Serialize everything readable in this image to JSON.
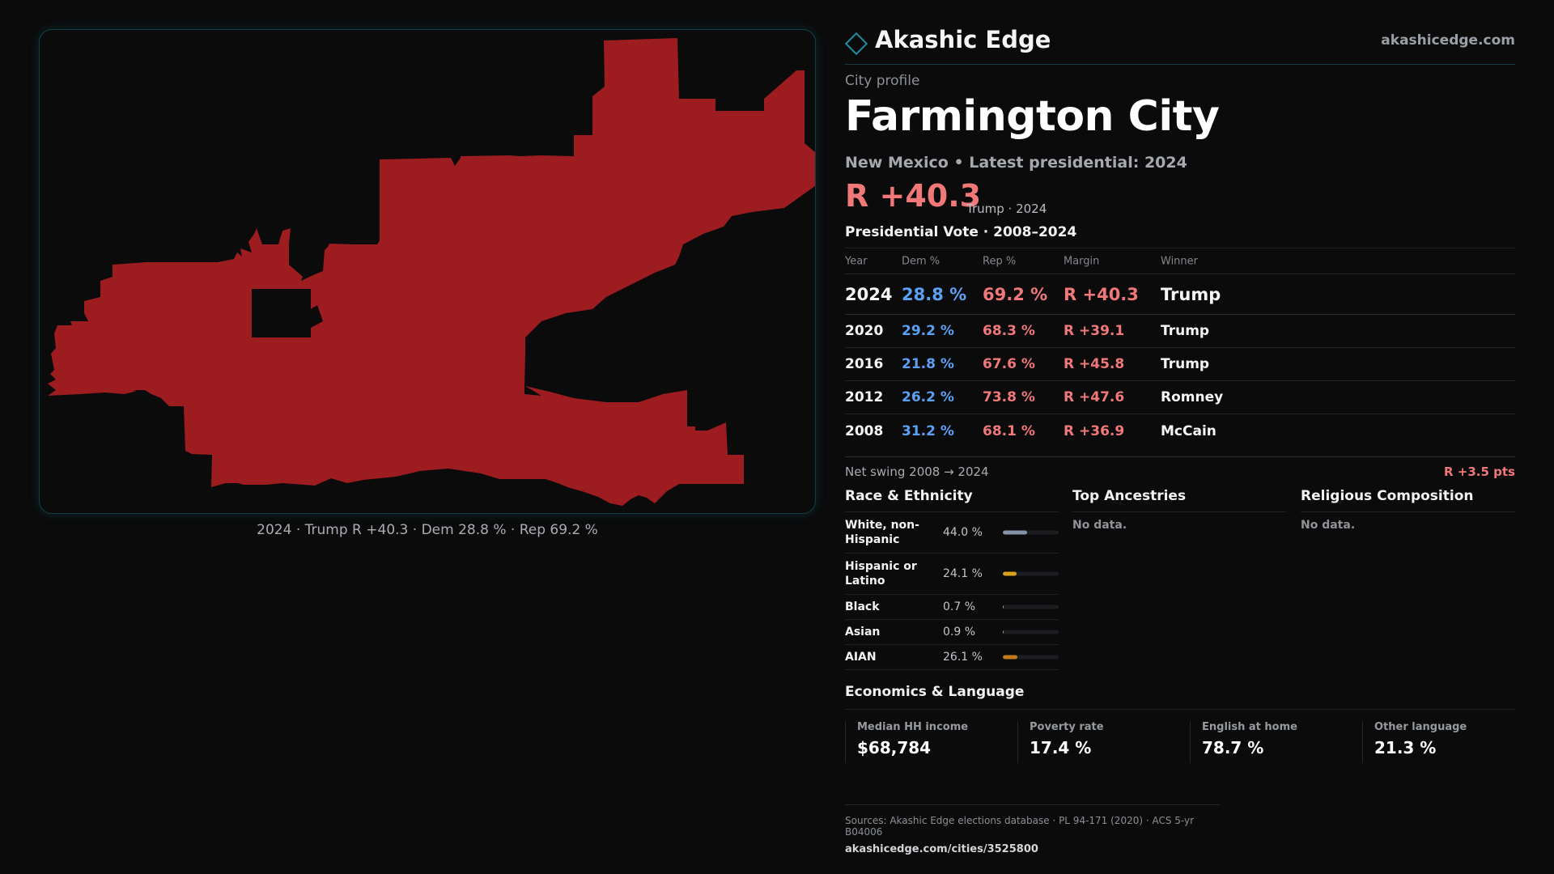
{
  "map": {
    "caption": "2024 · Trump R +40.3 · Dem 28.8 % · Rep 69.2 %",
    "fill_color": "#9c1c1f"
  },
  "brand": {
    "name": "Akashic Edge",
    "url": "akashicedge.com"
  },
  "profile": {
    "eyebrow": "City profile",
    "title": "Farmington City",
    "subtitle": "New Mexico • Latest presidential: 2024",
    "margin": "R +40.3",
    "margin_note": "Trump · 2024"
  },
  "vote": {
    "heading": "Presidential Vote · 2008–2024",
    "columns": [
      "Year",
      "Dem %",
      "Rep %",
      "Margin",
      "Winner"
    ],
    "rows": [
      {
        "year": "2024",
        "dem": "28.8 %",
        "rep": "69.2 %",
        "margin": "R +40.3",
        "winner": "Trump"
      },
      {
        "year": "2020",
        "dem": "29.2 %",
        "rep": "68.3 %",
        "margin": "R +39.1",
        "winner": "Trump"
      },
      {
        "year": "2016",
        "dem": "21.8 %",
        "rep": "67.6 %",
        "margin": "R +45.8",
        "winner": "Trump"
      },
      {
        "year": "2012",
        "dem": "26.2 %",
        "rep": "73.8 %",
        "margin": "R +47.6",
        "winner": "Romney"
      },
      {
        "year": "2008",
        "dem": "31.2 %",
        "rep": "68.1 %",
        "margin": "R +36.9",
        "winner": "McCain"
      }
    ],
    "swing_label": "Net swing 2008 → 2024",
    "swing_value": "R +3.5 pts"
  },
  "race": {
    "heading": "Race & Ethnicity",
    "rows": [
      {
        "name": "White, non-Hispanic",
        "pct": "44.0 %",
        "share": 0.44,
        "color": "#8593a8"
      },
      {
        "name": "Hispanic or Latino",
        "pct": "24.1 %",
        "share": 0.241,
        "color": "#d9a21d"
      },
      {
        "name": "Black",
        "pct": "0.7 %",
        "share": 0.007,
        "color": "#9aa3ad"
      },
      {
        "name": "Asian",
        "pct": "0.9 %",
        "share": 0.009,
        "color": "#9aa3ad"
      },
      {
        "name": "AIAN",
        "pct": "26.1 %",
        "share": 0.261,
        "color": "#c27a1d"
      }
    ]
  },
  "ancestries": {
    "heading": "Top Ancestries",
    "empty": "No data."
  },
  "religion": {
    "heading": "Religious Composition",
    "empty": "No data."
  },
  "economics": {
    "heading": "Economics & Language",
    "cards": [
      {
        "label": "Median HH income",
        "value": "$68,784"
      },
      {
        "label": "Poverty rate",
        "value": "17.4 %"
      },
      {
        "label": "English at home",
        "value": "78.7 %"
      },
      {
        "label": "Other language",
        "value": "21.3 %"
      }
    ]
  },
  "footer": {
    "sources": "Sources: Akashic Edge elections database · PL 94-171 (2020) · ACS 5-yr B04006",
    "url": "akashicedge.com/cities/3525800"
  }
}
